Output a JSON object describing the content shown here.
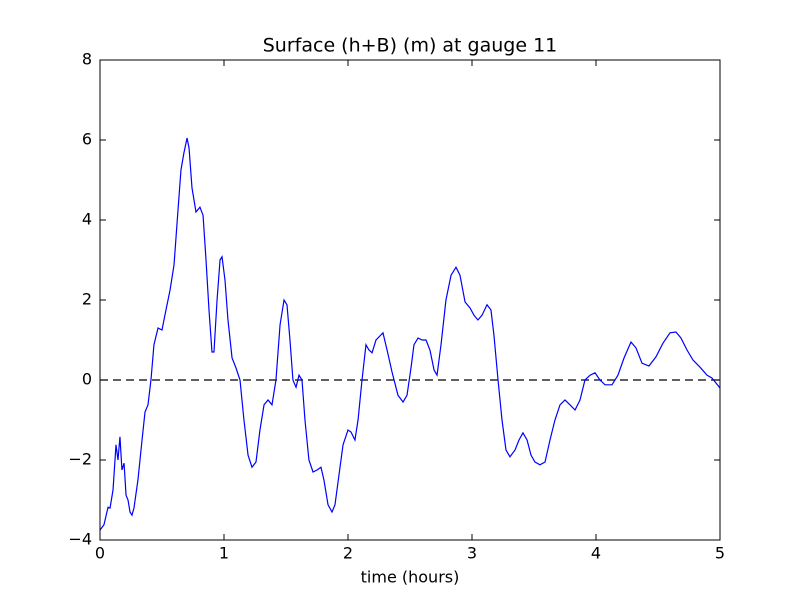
{
  "chart_data": {
    "type": "line",
    "title": "Surface (h+B) (m) at gauge 11",
    "x_label": "time (hours)",
    "xlim": [
      0,
      5
    ],
    "ylim": [
      -4,
      8
    ],
    "xticks": [
      0,
      1,
      2,
      3,
      4,
      5
    ],
    "yticks": [
      {
        "value": -4,
        "label": "−4"
      },
      {
        "value": -2,
        "label": "−2"
      },
      0,
      2,
      4,
      6,
      8
    ],
    "hlines": [
      0
    ],
    "grid": false,
    "x": [
      0,
      0.032,
      0.065,
      0.081,
      0.105,
      0.129,
      0.145,
      0.161,
      0.177,
      0.194,
      0.21,
      0.226,
      0.242,
      0.258,
      0.274,
      0.306,
      0.339,
      0.363,
      0.387,
      0.411,
      0.435,
      0.468,
      0.5,
      0.532,
      0.565,
      0.597,
      0.629,
      0.653,
      0.677,
      0.702,
      0.718,
      0.742,
      0.774,
      0.806,
      0.831,
      0.855,
      0.879,
      0.903,
      0.919,
      0.944,
      0.968,
      0.984,
      1.008,
      1.032,
      1.065,
      1.097,
      1.129,
      1.161,
      1.194,
      1.226,
      1.258,
      1.29,
      1.323,
      1.355,
      1.387,
      1.419,
      1.452,
      1.484,
      1.508,
      1.532,
      1.556,
      1.581,
      1.605,
      1.629,
      1.653,
      1.685,
      1.718,
      1.75,
      1.782,
      1.806,
      1.839,
      1.871,
      1.895,
      1.927,
      1.96,
      2.0,
      2.024,
      2.056,
      2.081,
      2.113,
      2.145,
      2.169,
      2.194,
      2.226,
      2.282,
      2.315,
      2.355,
      2.403,
      2.444,
      2.476,
      2.508,
      2.532,
      2.565,
      2.597,
      2.629,
      2.661,
      2.694,
      2.718,
      2.75,
      2.79,
      2.831,
      2.871,
      2.903,
      2.944,
      2.984,
      3.016,
      3.048,
      3.081,
      3.121,
      3.153,
      3.177,
      3.21,
      3.242,
      3.274,
      3.306,
      3.347,
      3.379,
      3.411,
      3.444,
      3.476,
      3.508,
      3.548,
      3.589,
      3.629,
      3.669,
      3.71,
      3.75,
      3.79,
      3.831,
      3.871,
      3.911,
      3.952,
      3.992,
      4.032,
      4.073,
      4.129,
      4.177,
      4.226,
      4.282,
      4.323,
      4.371,
      4.427,
      4.484,
      4.54,
      4.597,
      4.645,
      4.685,
      4.734,
      4.782,
      4.839,
      4.895,
      4.935,
      5.0
    ],
    "series": [
      {
        "name": "Surface",
        "color": "#0000ff",
        "values": [
          -3.75,
          -3.62,
          -3.18,
          -3.2,
          -2.75,
          -1.62,
          -2.0,
          -1.42,
          -2.25,
          -2.08,
          -2.88,
          -3.0,
          -3.3,
          -3.38,
          -3.2,
          -2.5,
          -1.5,
          -0.8,
          -0.62,
          0,
          0.88,
          1.3,
          1.25,
          1.75,
          2.25,
          2.88,
          4.25,
          5.25,
          5.68,
          6.05,
          5.8,
          4.8,
          4.2,
          4.32,
          4.12,
          3.0,
          1.75,
          0.7,
          0.7,
          2.0,
          3.0,
          3.08,
          2.5,
          1.5,
          0.55,
          0.3,
          0,
          -1.0,
          -1.88,
          -2.18,
          -2.05,
          -1.25,
          -0.62,
          -0.5,
          -0.62,
          0,
          1.38,
          2.0,
          1.88,
          1.0,
          0,
          -0.18,
          0.12,
          0,
          -1.0,
          -2.0,
          -2.3,
          -2.25,
          -2.18,
          -2.5,
          -3.12,
          -3.3,
          -3.12,
          -2.38,
          -1.62,
          -1.25,
          -1.3,
          -1.5,
          -1.0,
          0,
          0.88,
          0.75,
          0.68,
          1.0,
          1.18,
          0.75,
          0.2,
          -0.38,
          -0.55,
          -0.38,
          0.3,
          0.88,
          1.05,
          1.0,
          1.0,
          0.75,
          0.25,
          0.12,
          0.88,
          2.0,
          2.62,
          2.82,
          2.62,
          1.95,
          1.8,
          1.62,
          1.5,
          1.62,
          1.88,
          1.75,
          1.12,
          0,
          -1.0,
          -1.75,
          -1.92,
          -1.75,
          -1.5,
          -1.32,
          -1.5,
          -1.88,
          -2.05,
          -2.12,
          -2.05,
          -1.5,
          -1.0,
          -0.62,
          -0.5,
          -0.62,
          -0.75,
          -0.5,
          0,
          0.12,
          0.18,
          0,
          -0.12,
          -0.12,
          0.12,
          0.55,
          0.95,
          0.8,
          0.42,
          0.35,
          0.58,
          0.92,
          1.18,
          1.2,
          1.05,
          0.75,
          0.5,
          0.32,
          0.12,
          0.05,
          -0.2
        ]
      }
    ]
  }
}
